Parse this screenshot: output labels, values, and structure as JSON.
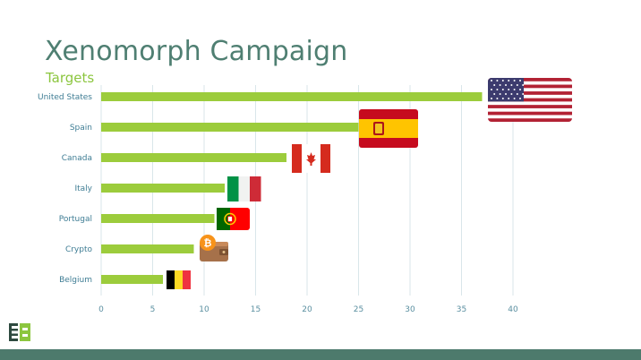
{
  "header": {
    "title": "Xenomorph Campaign",
    "subtitle": "Targets"
  },
  "chart_data": {
    "type": "bar",
    "orientation": "horizontal",
    "title": "Xenomorph Campaign",
    "subtitle": "Targets",
    "categories": [
      "United States",
      "Spain",
      "Canada",
      "Italy",
      "Portugal",
      "Crypto",
      "Belgium"
    ],
    "values": [
      37,
      25,
      18,
      12,
      11,
      9,
      6
    ],
    "xlim": [
      0,
      40
    ],
    "xticks": [
      0,
      5,
      10,
      15,
      20,
      25,
      30,
      35,
      40
    ],
    "grid": "vertical",
    "bar_color": "#9ccc3c",
    "icons": [
      "flag-usa-icon",
      "flag-spain-icon",
      "flag-canada-icon",
      "flag-italy-icon",
      "flag-portugal-icon",
      "bitcoin-wallet-icon",
      "flag-belgium-icon"
    ]
  },
  "colors": {
    "title": "#4f7f72",
    "subtitle": "#8cc63f",
    "bars": "#9ccc3c",
    "grid": "#d9e6ea",
    "footer": "#4d7a6c"
  }
}
